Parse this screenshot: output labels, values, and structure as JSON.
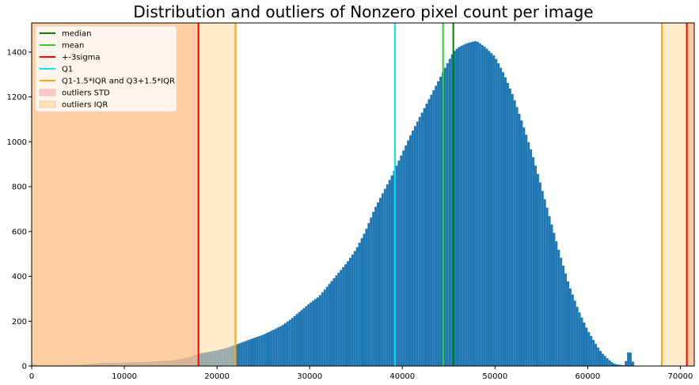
{
  "chart_data": {
    "type": "bar",
    "title": "Distribution and outliers of Nonzero pixel count per image",
    "xlabel": "",
    "ylabel": "",
    "xlim": [
      0,
      71500
    ],
    "ylim": [
      0,
      1530
    ],
    "grid": false,
    "legend_position": "top-left",
    "x_ticks": [
      0,
      10000,
      20000,
      30000,
      40000,
      50000,
      60000,
      70000
    ],
    "y_ticks": [
      0,
      200,
      400,
      600,
      800,
      1000,
      1200,
      1400
    ],
    "bin_width": 250,
    "bar_color": "#1f77b4",
    "histogram": {
      "x": [
        0,
        1000,
        2000,
        3000,
        4000,
        5000,
        6000,
        7000,
        8000,
        9000,
        10000,
        11000,
        12000,
        13000,
        14000,
        15000,
        16000,
        17000,
        18000,
        19000,
        20000,
        21000,
        22000,
        23000,
        24000,
        25000,
        26000,
        27000,
        28000,
        29000,
        30000,
        31000,
        32000,
        33000,
        34000,
        35000,
        36000,
        37000,
        38000,
        38500,
        39000,
        40000,
        41000,
        42000,
        43000,
        44000,
        45000,
        45500,
        46000,
        47000,
        48000,
        49000,
        50000,
        51000,
        52000,
        53000,
        54000,
        55000,
        56000,
        57000,
        58000,
        59000,
        60000,
        61000,
        61500,
        62000,
        62500,
        63000,
        64000,
        64500,
        65000,
        71500
      ],
      "y": [
        10,
        3,
        3,
        4,
        5,
        6,
        8,
        12,
        15,
        14,
        15,
        17,
        18,
        20,
        22,
        25,
        30,
        40,
        55,
        62,
        70,
        80,
        95,
        110,
        125,
        140,
        160,
        180,
        210,
        245,
        280,
        310,
        360,
        410,
        460,
        520,
        600,
        700,
        780,
        820,
        860,
        950,
        1040,
        1120,
        1200,
        1280,
        1360,
        1400,
        1420,
        1440,
        1450,
        1420,
        1380,
        1300,
        1200,
        1080,
        950,
        800,
        650,
        500,
        360,
        250,
        160,
        90,
        60,
        40,
        20,
        8,
        3,
        80,
        0,
        0
      ]
    },
    "vertical_lines": [
      {
        "name": "median",
        "x": 45500,
        "color": "#008000"
      },
      {
        "name": "mean",
        "x": 44400,
        "color": "#32cd32"
      },
      {
        "name": "+-3sigma",
        "x": 18000,
        "color": "#ff0000"
      },
      {
        "name": "+-3sigma",
        "x": 70700,
        "color": "#ff0000"
      },
      {
        "name": "Q1",
        "x": 39200,
        "color": "#00e5ee"
      },
      {
        "name": "Q1-1.5*IQR and Q3+1.5*IQR",
        "x": 22000,
        "color": "#ffa500"
      },
      {
        "name": "Q1-1.5*IQR and Q3+1.5*IQR",
        "x": 68000,
        "color": "#ffa500"
      }
    ],
    "shaded_regions": [
      {
        "name": "outliers STD",
        "from": 0,
        "to": 18000,
        "color": "#ff9966",
        "opacity": 0.6
      },
      {
        "name": "outliers STD",
        "from": 70700,
        "to": 71500,
        "color": "#ff9966",
        "opacity": 0.6
      },
      {
        "name": "outliers IQR",
        "from": 0,
        "to": 22000,
        "color": "#ffd9a0",
        "opacity": 0.55
      },
      {
        "name": "outliers IQR",
        "from": 68000,
        "to": 71500,
        "color": "#ffd9a0",
        "opacity": 0.55
      }
    ],
    "legend": [
      {
        "label": "median",
        "kind": "line",
        "color": "#008000"
      },
      {
        "label": "mean",
        "kind": "line",
        "color": "#32cd32"
      },
      {
        "label": "+-3sigma",
        "kind": "line",
        "color": "#ff0000"
      },
      {
        "label": "Q1",
        "kind": "line",
        "color": "#00e5ee"
      },
      {
        "label": "Q1-1.5*IQR and Q3+1.5*IQR",
        "kind": "line",
        "color": "#ffa500"
      },
      {
        "label": "outliers STD",
        "kind": "patch",
        "color": "#ffc8c8"
      },
      {
        "label": "outliers IQR",
        "kind": "patch",
        "color": "#ffe4b5"
      }
    ]
  }
}
